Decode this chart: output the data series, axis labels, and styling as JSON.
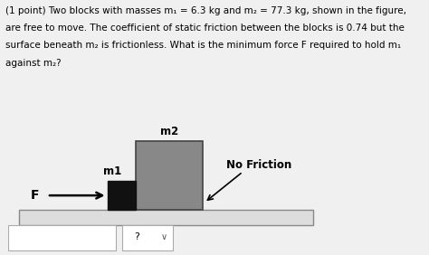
{
  "line1": "(1 point) Two blocks with masses m₁ = 6.3 kg and m₂ = 77.3 kg, shown in the figure,",
  "line2": "are free to move. The coefficient of static friction between the blocks is 0.74 but the",
  "line3": "surface beneath m₂ is frictionless. What is the minimum force F required to hold m₁",
  "line4": "against m₂?",
  "background_color": "#f0f0f0",
  "m1_label": "m1",
  "m2_label": "m2",
  "force_label": "F",
  "no_friction_label": "No Friction",
  "question_mark": "?",
  "m1_color": "#111111",
  "m2_color": "#888888",
  "platform_color": "#dddddd",
  "platform_border": "#888888",
  "arrow_color": "#000000",
  "text_color": "#000000",
  "text_fontsize": 7.5,
  "label_fontsize": 8.5
}
